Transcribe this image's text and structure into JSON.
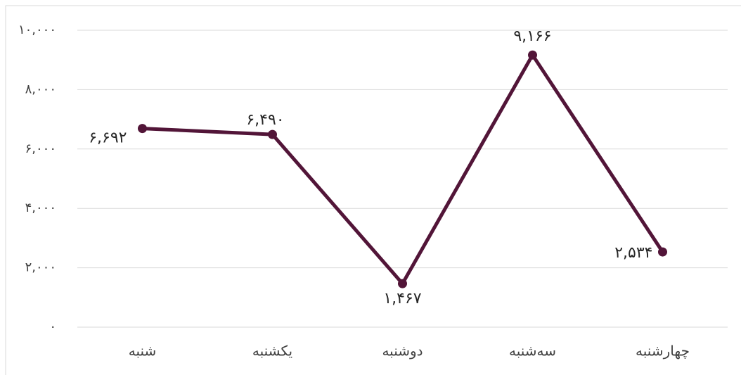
{
  "chart_data": {
    "type": "line",
    "categories": [
      "شنبه",
      "یکشنبه",
      "دوشنبه",
      "سه‌شنبه",
      "چهارشنبه"
    ],
    "series": [
      {
        "color": "#521538",
        "values": [
          6692,
          6490,
          1467,
          9166,
          2534
        ],
        "value_labels": [
          "۶,۶۹۲",
          "۶,۴۹۰",
          "۱,۴۶۷",
          "۹,۱۶۶",
          "۲,۵۳۴"
        ]
      }
    ],
    "ylim": [
      0,
      10000
    ],
    "yticks": [
      {
        "value": 0,
        "label": "۰"
      },
      {
        "value": 2000,
        "label": "۲,۰۰۰"
      },
      {
        "value": 4000,
        "label": "۴,۰۰۰"
      },
      {
        "value": 6000,
        "label": "۶,۰۰۰"
      },
      {
        "value": 8000,
        "label": "۸,۰۰۰"
      },
      {
        "value": 10000,
        "label": "۱۰,۰۰۰"
      }
    ],
    "grid": true
  }
}
